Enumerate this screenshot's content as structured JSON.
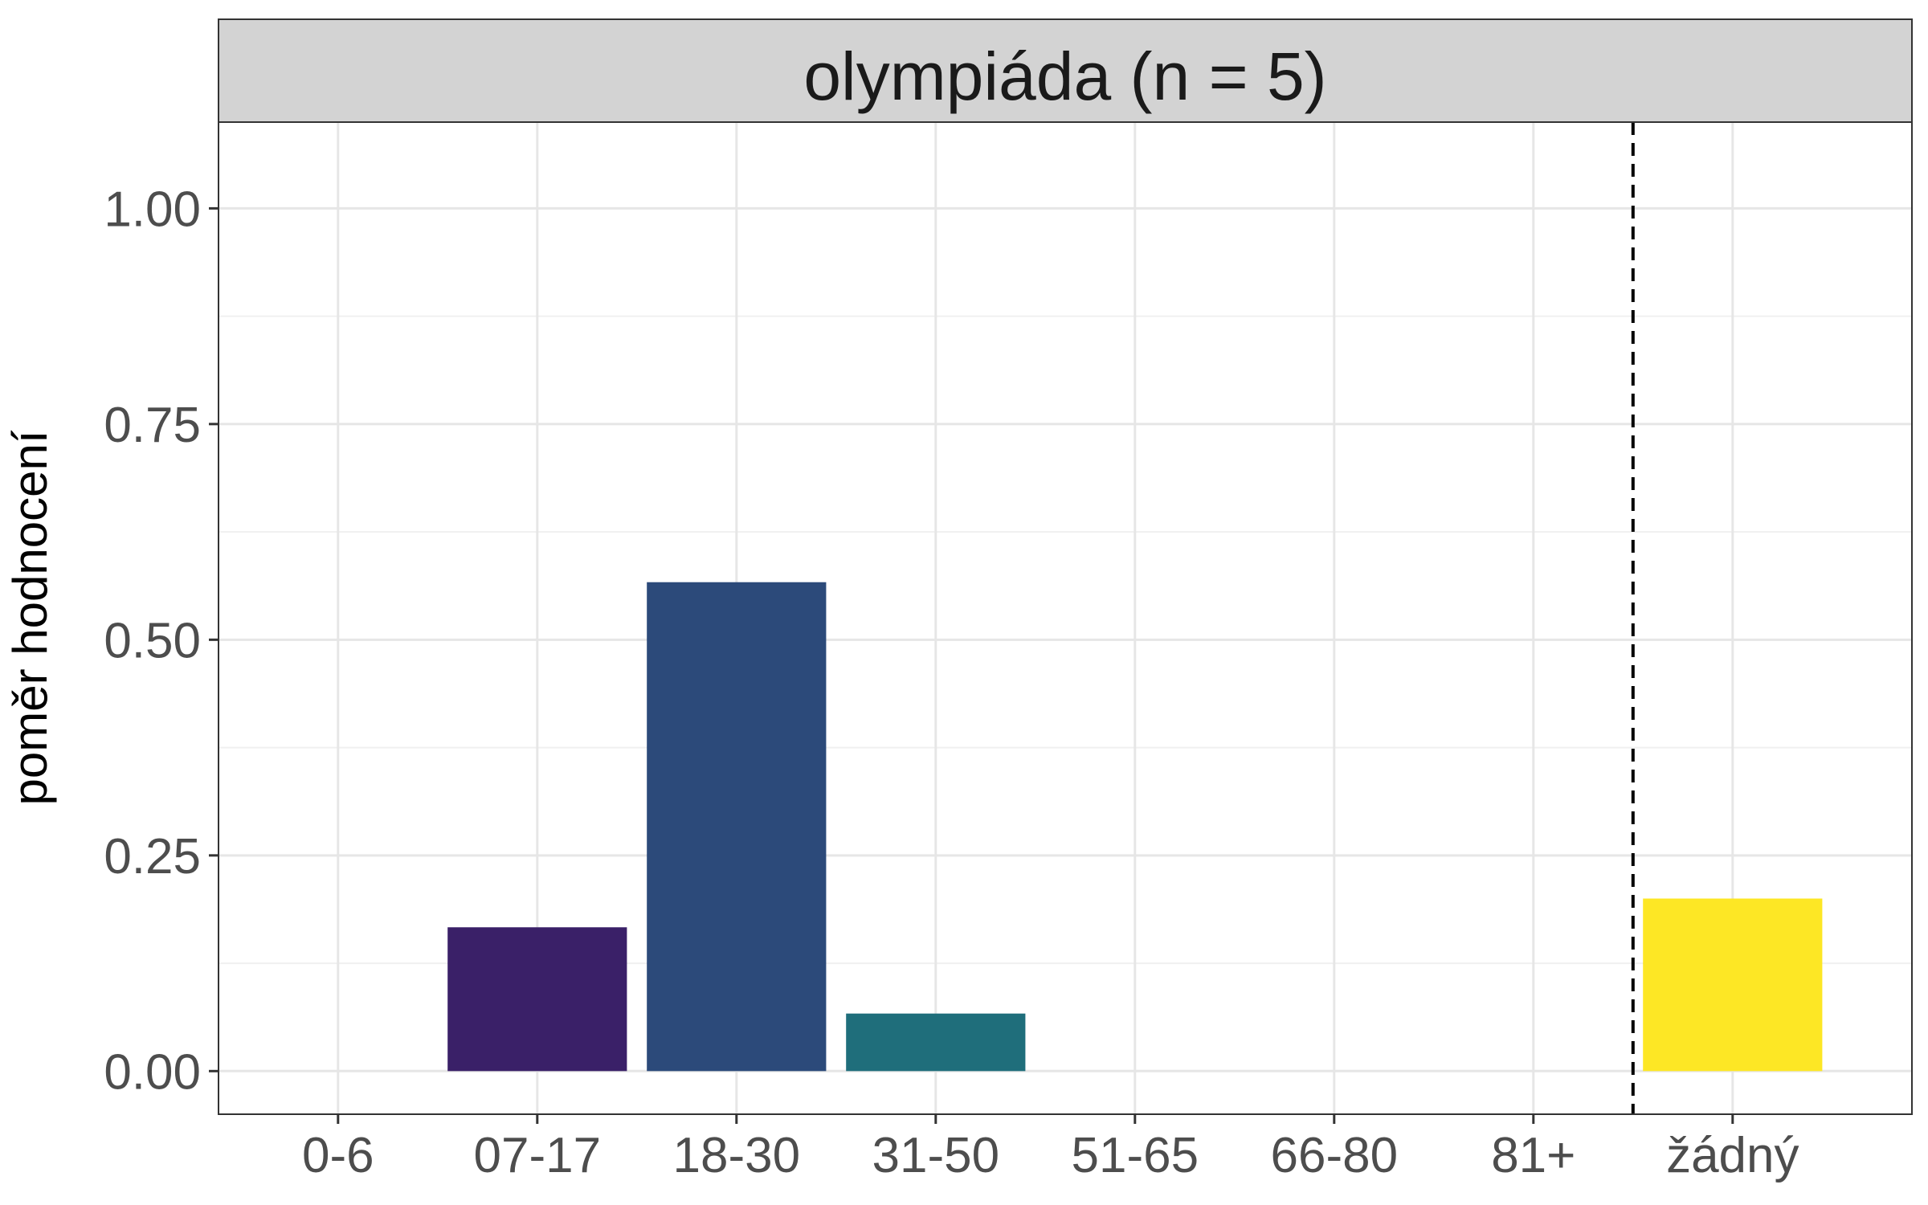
{
  "chart_data": {
    "type": "bar",
    "facet_title": "olympiáda (n = 5)",
    "ylabel": "poměr hodnocení",
    "xlabel": "",
    "categories": [
      "0-6",
      "07-17",
      "18-30",
      "31-50",
      "51-65",
      "66-80",
      "81+",
      "žádný"
    ],
    "values": [
      0,
      0.1667,
      0.5667,
      0.0667,
      0,
      0,
      0,
      0.2
    ],
    "colors": [
      "#440154",
      "#3a2068",
      "#2c4a7a",
      "#1f6e7b",
      "#22a884",
      "#7ad151",
      "#bddf26",
      "#fde725"
    ],
    "ylim": [
      -0.05,
      1.1
    ],
    "yticks": [
      0,
      0.25,
      0.5,
      0.75,
      1.0
    ],
    "ytick_labels": [
      "0.00",
      "0.25",
      "0.50",
      "0.75",
      "1.00"
    ],
    "reference_line": {
      "between": [
        "81+",
        "žádný"
      ],
      "style": "dashed"
    },
    "grid": true,
    "legend": "none"
  }
}
